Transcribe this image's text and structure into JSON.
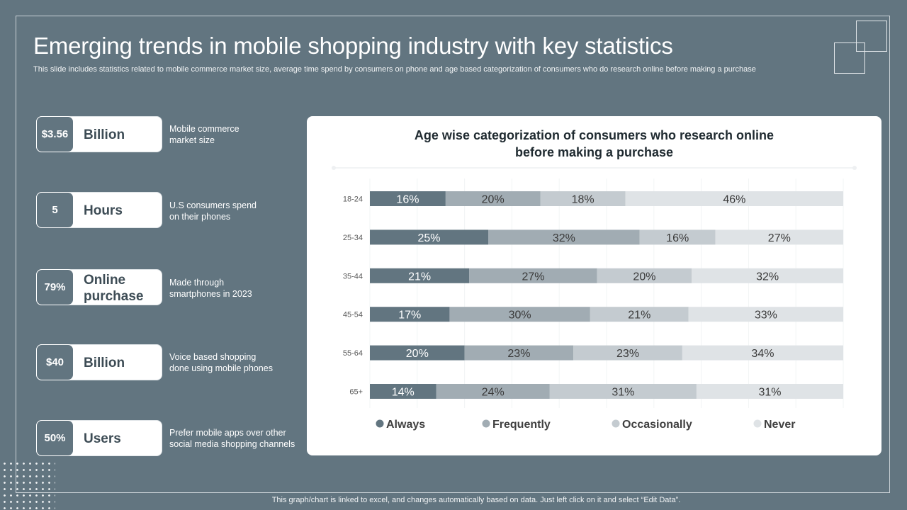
{
  "header": {
    "title": "Emerging trends in mobile shopping industry with key statistics",
    "subtitle": "This slide includes statistics related to mobile commerce market size, average time spend by consumers on phone and age based categorization of consumers who do research online before making a purchase"
  },
  "stats": [
    {
      "value": "$3.56",
      "unit": "Billion",
      "desc": [
        "Mobile commerce",
        "market size"
      ]
    },
    {
      "value": "5",
      "unit": "Hours",
      "desc": [
        "U.S consumers spend",
        "on their phones"
      ]
    },
    {
      "value": "79%",
      "unit": [
        "Online",
        "purchase"
      ],
      "desc": [
        "Made through",
        "smartphones in 2023"
      ]
    },
    {
      "value": "$40",
      "unit": "Billion",
      "desc": [
        "Voice based shopping",
        "done using mobile phones"
      ]
    },
    {
      "value": "50%",
      "unit": "Users",
      "desc": [
        "Prefer mobile apps over other",
        "social media shopping channels"
      ]
    }
  ],
  "footer": "This graph/chart is linked to excel, and changes automatically based on data. Just left click on it and select “Edit Data”.",
  "chart_data": {
    "type": "bar",
    "orientation": "horizontal",
    "stacked": "100%",
    "title": [
      "Age wise categorization of consumers who research online",
      "before making a purchase"
    ],
    "categories": [
      "18-24",
      "25-34",
      "35-44",
      "45-54",
      "55-64",
      "65+"
    ],
    "series": [
      {
        "name": "Always",
        "values": [
          16,
          25,
          21,
          17,
          20,
          14
        ],
        "color": "#627580"
      },
      {
        "name": "Frequently",
        "values": [
          20,
          32,
          27,
          30,
          23,
          24
        ],
        "color": "#a1acb3"
      },
      {
        "name": "Occasionally",
        "values": [
          18,
          16,
          20,
          21,
          23,
          31
        ],
        "color": "#c4cbd0"
      },
      {
        "name": "Never",
        "values": [
          46,
          27,
          32,
          33,
          34,
          31
        ],
        "color": "#dfe3e6"
      }
    ],
    "data_labels": "percent",
    "legend": "bottom",
    "grid": true
  }
}
